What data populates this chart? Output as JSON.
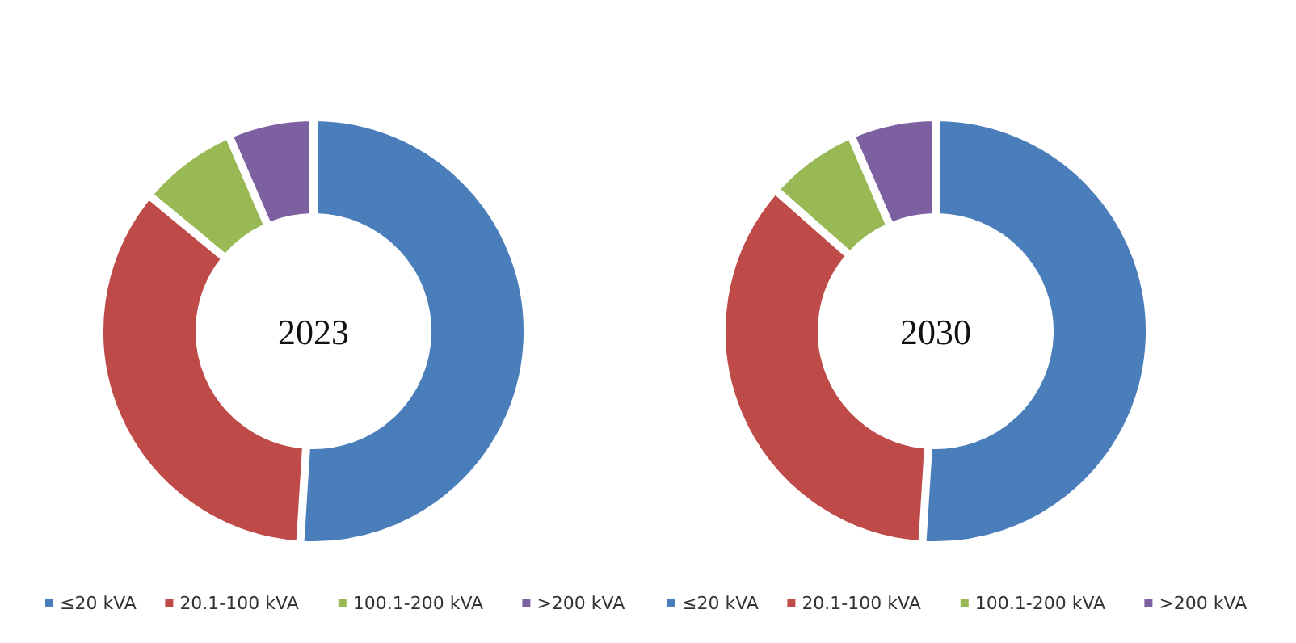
{
  "chart_data": [
    {
      "type": "donut",
      "title": "2023",
      "categories": [
        "≤20 kVA",
        "20.1-100 kVA",
        "100.1-200 kVA",
        ">200 kVA"
      ],
      "values": [
        51,
        35,
        7.5,
        6.5
      ],
      "colors": [
        "#4a7ebb",
        "#be4b48",
        "#98b954",
        "#7d60a0"
      ],
      "legend": "bottom"
    },
    {
      "type": "donut",
      "title": "2030",
      "categories": [
        "≤20 kVA",
        "20.1-100 kVA",
        "100.1-200 kVA",
        ">200 kVA"
      ],
      "values": [
        51,
        35.5,
        7,
        6.5
      ],
      "colors": [
        "#4a7ebb",
        "#be4b48",
        "#98b954",
        "#7d60a0"
      ],
      "legend": "bottom"
    }
  ]
}
